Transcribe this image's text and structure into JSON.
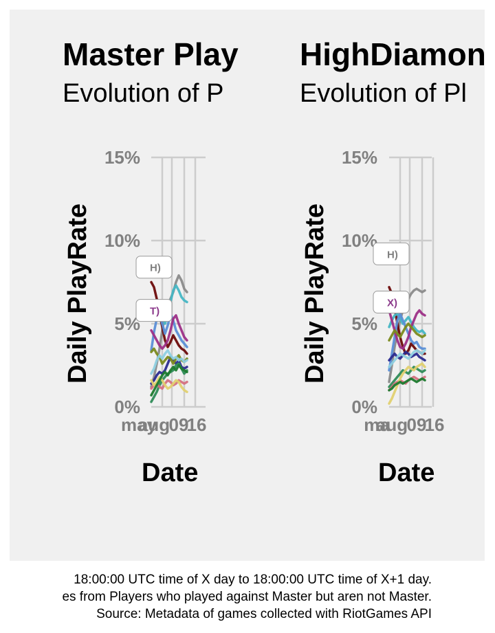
{
  "chart_data": [
    {
      "type": "line",
      "title": "Master Play",
      "subtitle": "Evolution of P",
      "xlabel": "Date",
      "ylabel": "Daily PlayRate",
      "x_tick_labels": [
        "may",
        "aug",
        "09",
        "16"
      ],
      "y_ticks": [
        0,
        5,
        10,
        15
      ],
      "y_tick_labels": [
        "0%",
        "5%",
        "10%",
        "15%"
      ],
      "ylim": [
        0,
        15
      ],
      "grid": true,
      "legend": "none",
      "x": [
        1,
        2,
        3,
        4,
        5,
        6,
        7,
        8,
        9,
        10,
        11,
        12,
        13,
        14
      ],
      "point_labels": [
        {
          "text": "H)",
          "color": "#808080",
          "y": 8.4
        },
        {
          "text": "T)",
          "color": "#8b3a8b",
          "y": 5.8
        }
      ],
      "series": [
        {
          "color": "#8a8a8a",
          "values": [
            1.2,
            1.8,
            2.6,
            3.5,
            4.6,
            5.6,
            6.2,
            6.5,
            6.9,
            7.5,
            7.9,
            7.6,
            7.1,
            6.9
          ]
        },
        {
          "color": "#6b0a0a",
          "values": [
            7.5,
            7.2,
            6.5,
            5.6,
            4.8,
            4.0,
            3.6,
            3.9,
            4.3,
            4.0,
            3.7,
            3.5,
            3.4,
            3.2
          ]
        },
        {
          "color": "#46b6c4",
          "values": [
            5.4,
            6.0,
            6.4,
            6.0,
            5.5,
            5.0,
            5.6,
            6.3,
            7.0,
            7.3,
            7.0,
            6.6,
            6.4,
            6.3
          ]
        },
        {
          "color": "#5b8ed6",
          "values": [
            3.4,
            4.5,
            5.3,
            5.6,
            5.0,
            4.4,
            4.9,
            5.6,
            5.2,
            4.6,
            4.3,
            4.0,
            3.8,
            3.6
          ]
        },
        {
          "color": "#9c2f86",
          "values": [
            4.6,
            4.3,
            4.0,
            3.7,
            3.5,
            3.7,
            4.0,
            4.6,
            5.3,
            5.5,
            5.0,
            4.6,
            4.2,
            4.0
          ]
        },
        {
          "color": "#2b2b8f",
          "values": [
            1.4,
            1.6,
            1.9,
            2.1,
            2.0,
            2.2,
            2.6,
            3.0,
            2.8,
            2.6,
            2.8,
            2.4,
            2.3,
            2.4
          ]
        },
        {
          "color": "#7a8a1c",
          "values": [
            3.3,
            3.5,
            3.2,
            3.0,
            2.6,
            2.8,
            3.0,
            2.9,
            2.6,
            2.9,
            3.1,
            2.8,
            2.7,
            2.9
          ]
        },
        {
          "color": "#2e8b57",
          "values": [
            0.3,
            0.6,
            0.9,
            1.3,
            1.6,
            1.8,
            2.0,
            2.1,
            2.2,
            2.5,
            2.6,
            2.3,
            2.0,
            2.2
          ]
        },
        {
          "color": "#d4707f",
          "values": [
            1.1,
            1.3,
            1.4,
            1.2,
            1.1,
            1.4,
            1.6,
            1.5,
            1.3,
            1.4,
            1.6,
            1.5,
            1.4,
            1.5
          ]
        },
        {
          "color": "#e0d070",
          "values": [
            1.6,
            1.3,
            1.5,
            1.8,
            1.6,
            1.3,
            1.1,
            1.2,
            1.4,
            1.6,
            1.5,
            1.2,
            1.0,
            0.9
          ]
        },
        {
          "color": "#1c7a2e",
          "values": [
            0.7,
            1.0,
            1.3,
            1.6,
            1.9,
            2.1,
            1.9,
            2.2,
            2.4,
            2.2,
            2.5,
            2.3,
            2.2,
            2.1
          ]
        },
        {
          "color": "#8fd0e0",
          "values": [
            2.0,
            2.3,
            2.8,
            3.1,
            2.9,
            3.2,
            3.4,
            3.1,
            2.9,
            3.0,
            2.8,
            2.9,
            2.7,
            2.8
          ]
        }
      ]
    },
    {
      "type": "line",
      "title": "HighDiamon",
      "subtitle": "Evolution of Pl",
      "xlabel": "Date",
      "ylabel": "Daily PlayRate",
      "x_tick_labels": [
        "ma",
        "aug",
        "09",
        "16"
      ],
      "y_ticks": [
        0,
        5,
        10,
        15
      ],
      "y_tick_labels": [
        "0%",
        "5%",
        "10%",
        "15%"
      ],
      "ylim": [
        0,
        15
      ],
      "grid": true,
      "legend": "none",
      "x": [
        1,
        2,
        3,
        4,
        5,
        6,
        7,
        8,
        9,
        10,
        11,
        12,
        13,
        14
      ],
      "point_labels": [
        {
          "text": "H)",
          "color": "#808080",
          "y": 9.2
        },
        {
          "text": "X)",
          "color": "#8b3a8b",
          "y": 6.3
        }
      ],
      "series": [
        {
          "color": "#8a8a8a",
          "values": [
            1.5,
            2.5,
            3.6,
            4.5,
            5.2,
            5.8,
            6.2,
            6.5,
            6.8,
            7.0,
            7.1,
            7.0,
            6.9,
            7.0
          ]
        },
        {
          "color": "#6b0a0a",
          "values": [
            7.2,
            6.8,
            6.0,
            5.0,
            4.2,
            3.6,
            3.2,
            3.4,
            3.8,
            3.6,
            3.4,
            3.3,
            3.2,
            3.2
          ]
        },
        {
          "color": "#46b6c4",
          "values": [
            4.8,
            5.2,
            5.5,
            5.6,
            5.3,
            5.0,
            5.2,
            5.4,
            5.1,
            4.8,
            4.6,
            4.5,
            4.6,
            4.4
          ]
        },
        {
          "color": "#5b8ed6",
          "values": [
            2.2,
            3.2,
            4.2,
            5.2,
            5.6,
            5.2,
            4.8,
            4.4,
            4.0,
            3.8,
            3.9,
            3.6,
            3.5,
            3.5
          ]
        },
        {
          "color": "#9c2f86",
          "values": [
            5.8,
            5.2,
            4.6,
            4.0,
            3.6,
            3.5,
            3.8,
            4.2,
            4.8,
            5.2,
            5.6,
            5.8,
            5.6,
            5.5
          ]
        },
        {
          "color": "#2b2b8f",
          "values": [
            2.8,
            3.0,
            3.2,
            3.0,
            2.9,
            3.1,
            3.3,
            3.2,
            3.0,
            3.1,
            3.2,
            3.0,
            2.9,
            2.8
          ]
        },
        {
          "color": "#7a8a1c",
          "values": [
            4.0,
            4.3,
            4.6,
            4.4,
            4.2,
            4.5,
            4.8,
            5.0,
            4.8,
            4.6,
            4.4,
            4.3,
            4.2,
            4.3
          ]
        },
        {
          "color": "#2e8b57",
          "values": [
            1.2,
            1.4,
            1.6,
            1.8,
            2.0,
            2.2,
            2.1,
            2.0,
            2.2,
            2.4,
            2.3,
            2.2,
            2.1,
            2.2
          ]
        },
        {
          "color": "#d4707f",
          "values": [
            1.0,
            1.2,
            1.4,
            1.5,
            1.6,
            1.5,
            1.4,
            1.6,
            1.7,
            1.8,
            1.7,
            1.6,
            1.7,
            1.8
          ]
        },
        {
          "color": "#e0d070",
          "values": [
            0.2,
            0.5,
            0.9,
            1.3,
            1.7,
            2.0,
            2.2,
            2.4,
            2.3,
            2.2,
            2.4,
            2.5,
            2.6,
            2.4
          ]
        },
        {
          "color": "#1c7a2e",
          "values": [
            1.0,
            1.1,
            1.3,
            1.4,
            1.5,
            1.4,
            1.5,
            1.6,
            1.7,
            1.6,
            1.5,
            1.6,
            1.7,
            1.6
          ]
        },
        {
          "color": "#8fd0e0",
          "values": [
            2.4,
            2.6,
            2.8,
            3.0,
            3.2,
            3.1,
            3.0,
            2.9,
            3.1,
            3.3,
            3.4,
            3.3,
            3.2,
            3.4
          ]
        }
      ]
    }
  ],
  "captions": [
    "18:00:00 UTC time of X day to 18:00:00 UTC time of X+1 day.",
    "es from Players who played against Master but aren not Master.",
    "Source: Metadata of games collected with RiotGames API"
  ]
}
